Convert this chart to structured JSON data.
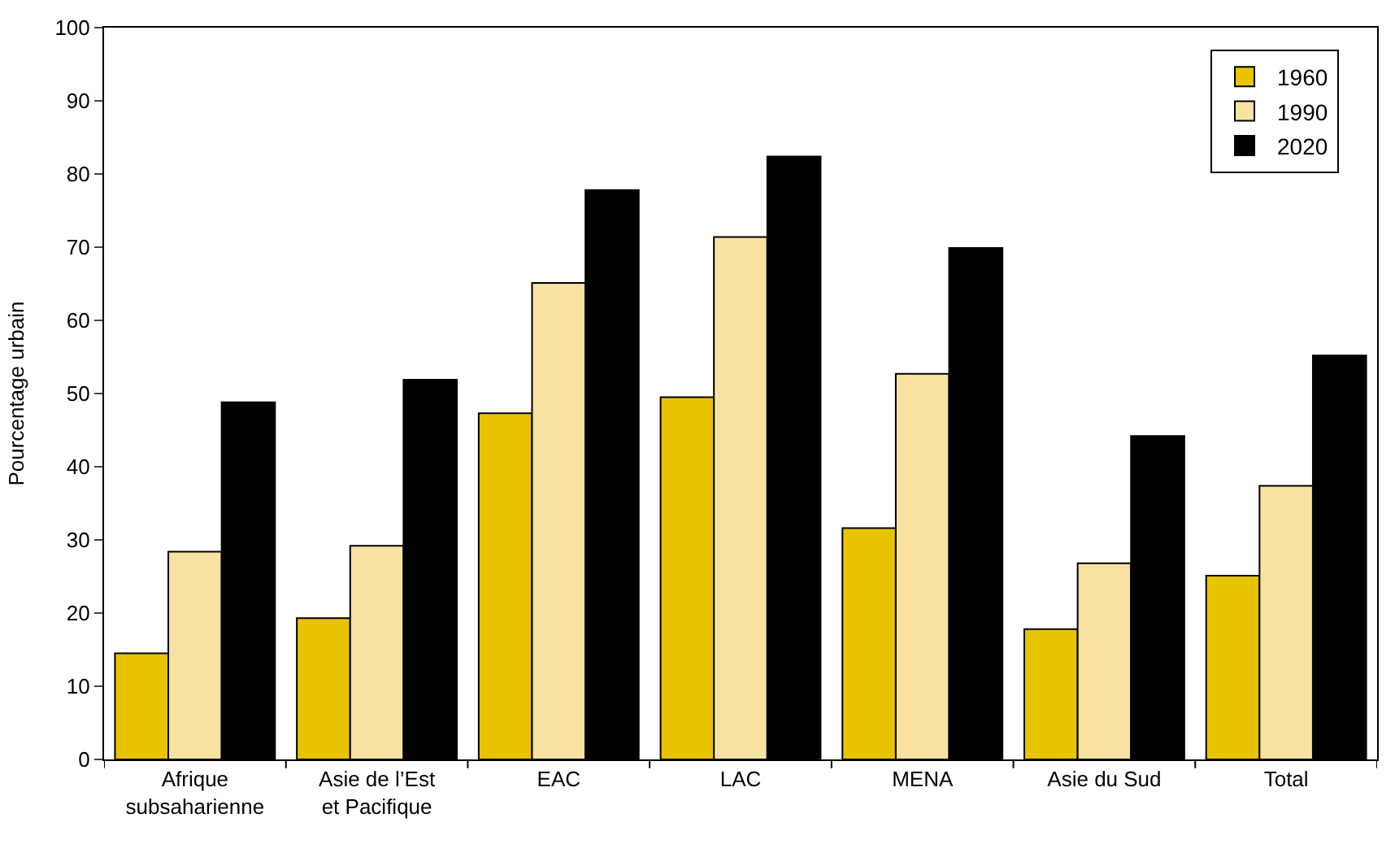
{
  "chart_data": {
    "type": "bar",
    "ylabel": "Pourcentage urbain",
    "categories": [
      "Afrique subsaharienne",
      "Asie de l’Est et Pacifique",
      "EAC",
      "LAC",
      "MENA",
      "Asie du Sud",
      "Total"
    ],
    "series": [
      {
        "name": "1960",
        "color": "#e8c300",
        "values": [
          14.5,
          19.3,
          47.3,
          49.5,
          31.6,
          17.8,
          25.1
        ]
      },
      {
        "name": "1990",
        "color": "#f8e2a2",
        "values": [
          28.4,
          29.2,
          65.1,
          71.4,
          52.7,
          26.8,
          37.4
        ]
      },
      {
        "name": "2020",
        "color": "#000000",
        "values": [
          48.8,
          51.9,
          77.8,
          82.4,
          69.9,
          44.2,
          55.2
        ]
      }
    ],
    "ylim": [
      0,
      100
    ],
    "yticks": [
      0,
      10,
      20,
      30,
      40,
      50,
      60,
      70,
      80,
      90,
      100
    ],
    "grid": false,
    "legend": "top right"
  }
}
